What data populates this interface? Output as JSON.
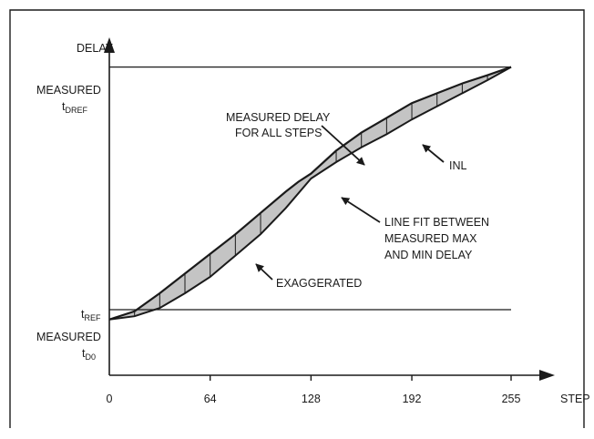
{
  "chart_data": {
    "type": "line",
    "y_axis_label": "DELAY",
    "x_axis_label": "STEP",
    "x_ticks": [
      "0",
      "64",
      "128",
      "192",
      "255"
    ],
    "x_tick_values": [
      0,
      64,
      128,
      192,
      255
    ],
    "xlim": [
      0,
      255
    ],
    "ylim": [
      0,
      1
    ],
    "y_labels": {
      "dref_prefix": "MEASURED",
      "dref_main": "t",
      "dref_sub": "DREF",
      "ref_main": "t",
      "ref_sub": "REF",
      "d0_prefix": "MEASURED",
      "d0_main": "t",
      "d0_sub": "D0"
    },
    "reference_levels": {
      "t_DREF": 0.94,
      "t_REF": 0.2,
      "t_D0": 0.17
    },
    "series": [
      {
        "name": "MEASURED DELAY FOR ALL STEPS",
        "points": [
          [
            0,
            0.17
          ],
          [
            16,
            0.195
          ],
          [
            32,
            0.25
          ],
          [
            48,
            0.31
          ],
          [
            64,
            0.37
          ],
          [
            80,
            0.43
          ],
          [
            96,
            0.495
          ],
          [
            112,
            0.56
          ],
          [
            120,
            0.59
          ],
          [
            128,
            0.615
          ],
          [
            144,
            0.685
          ],
          [
            160,
            0.74
          ],
          [
            176,
            0.785
          ],
          [
            192,
            0.83
          ],
          [
            208,
            0.86
          ],
          [
            224,
            0.89
          ],
          [
            240,
            0.915
          ],
          [
            255,
            0.94
          ]
        ]
      },
      {
        "name": "LINE FIT BETWEEN MEASURED MAX AND MIN DELAY",
        "points": [
          [
            0,
            0.17
          ],
          [
            16,
            0.18
          ],
          [
            32,
            0.205
          ],
          [
            48,
            0.25
          ],
          [
            64,
            0.3
          ],
          [
            80,
            0.365
          ],
          [
            96,
            0.43
          ],
          [
            112,
            0.51
          ],
          [
            128,
            0.6
          ],
          [
            144,
            0.65
          ],
          [
            160,
            0.695
          ],
          [
            176,
            0.735
          ],
          [
            192,
            0.78
          ],
          [
            208,
            0.82
          ],
          [
            224,
            0.86
          ],
          [
            240,
            0.9
          ],
          [
            255,
            0.94
          ]
        ]
      }
    ],
    "hatch_steps": [
      16,
      32,
      48,
      64,
      80,
      96,
      144,
      160,
      176,
      192,
      208,
      224,
      240
    ],
    "annotations": {
      "measured_delay": [
        "MEASURED DELAY",
        "FOR ALL STEPS"
      ],
      "inl": "INL",
      "line_fit": [
        "LINE FIT BETWEEN",
        "MEASURED MAX",
        "AND MIN DELAY"
      ],
      "exaggerated": "EXAGGERATED"
    },
    "grid": false,
    "legend": "none"
  }
}
